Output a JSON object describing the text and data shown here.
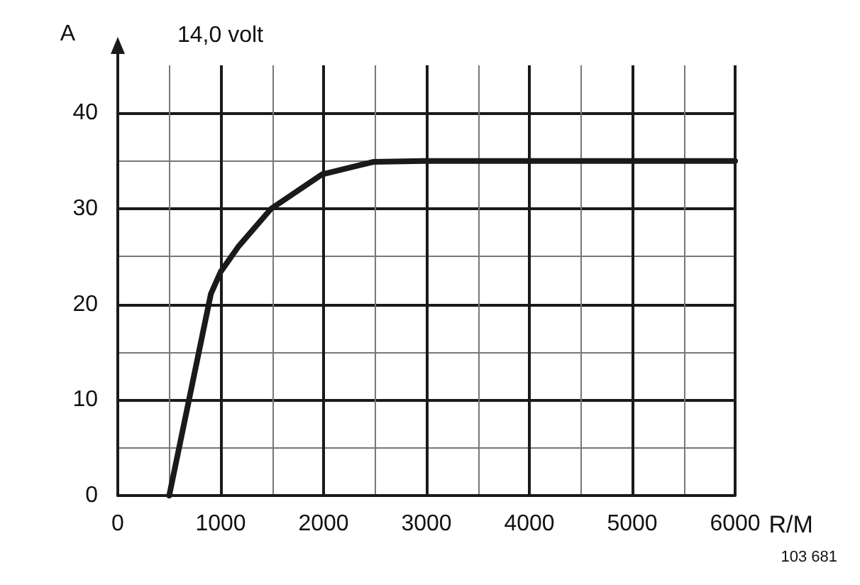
{
  "chart_data": {
    "type": "line",
    "title": "14,0 volt",
    "xlabel": "R/M",
    "ylabel": "A",
    "x": [
      500,
      905,
      1000,
      1176,
      1490,
      1986,
      2482,
      2973,
      6000
    ],
    "series": [
      {
        "color": "#1a1a1a",
        "values": [
          0,
          21.1,
          23.4,
          26.1,
          30.0,
          33.6,
          34.9,
          35,
          35
        ]
      }
    ],
    "xlim": [
      0,
      6000
    ],
    "xticks": [
      0,
      1000,
      2000,
      3000,
      4000,
      5000,
      6000
    ],
    "ylim": [
      0,
      45
    ],
    "yticks": [
      0,
      10,
      20,
      30,
      40
    ],
    "grid": true,
    "marker": "none",
    "line_style": "solid",
    "annotations": [
      "103 681"
    ]
  }
}
